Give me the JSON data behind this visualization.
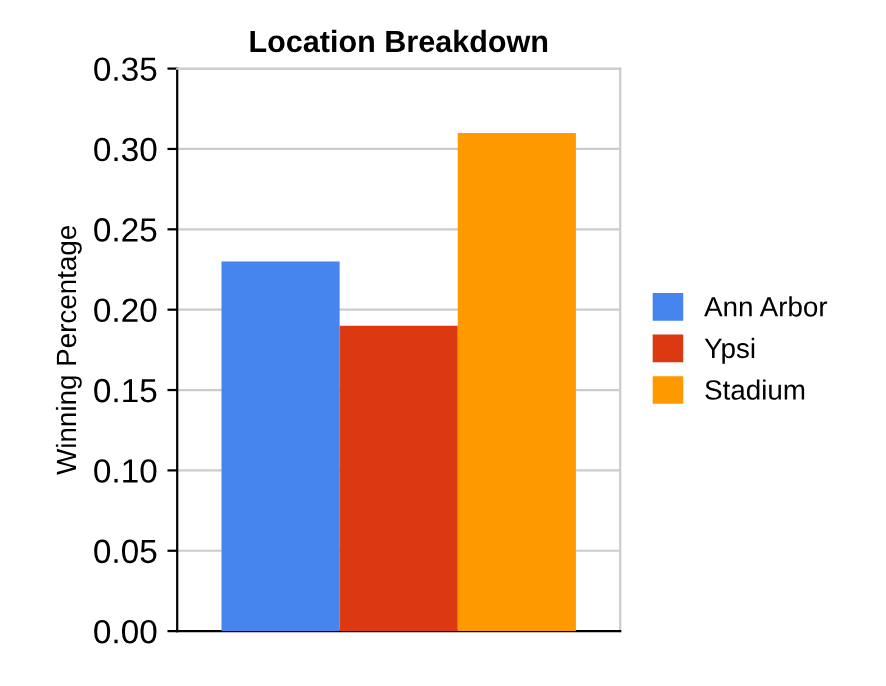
{
  "chart_data": {
    "type": "bar",
    "title": "Location Breakdown",
    "ylabel": "Winning Percentage",
    "categories": [
      null
    ],
    "series": [
      {
        "name": "Ann Arbor",
        "color": "#4684ee",
        "values": [
          0.23
        ]
      },
      {
        "name": "Ypsi",
        "color": "#dc3912",
        "values": [
          0.19
        ]
      },
      {
        "name": "Stadium",
        "color": "#ff9900",
        "values": [
          0.31
        ]
      }
    ],
    "ylim": [
      0,
      0.35
    ],
    "yticks": [
      {
        "value": 0,
        "label": "0.00"
      },
      {
        "value": 0.05,
        "label": "0.05"
      },
      {
        "value": 0.1,
        "label": "0.10"
      },
      {
        "value": 0.15,
        "label": "0.15"
      },
      {
        "value": 0.2,
        "label": "0.20"
      },
      {
        "value": 0.25,
        "label": "0.25"
      },
      {
        "value": 0.3,
        "label": "0.30"
      },
      {
        "value": 0.35,
        "label": "0.35"
      }
    ],
    "grid": "y",
    "legend": "right"
  }
}
